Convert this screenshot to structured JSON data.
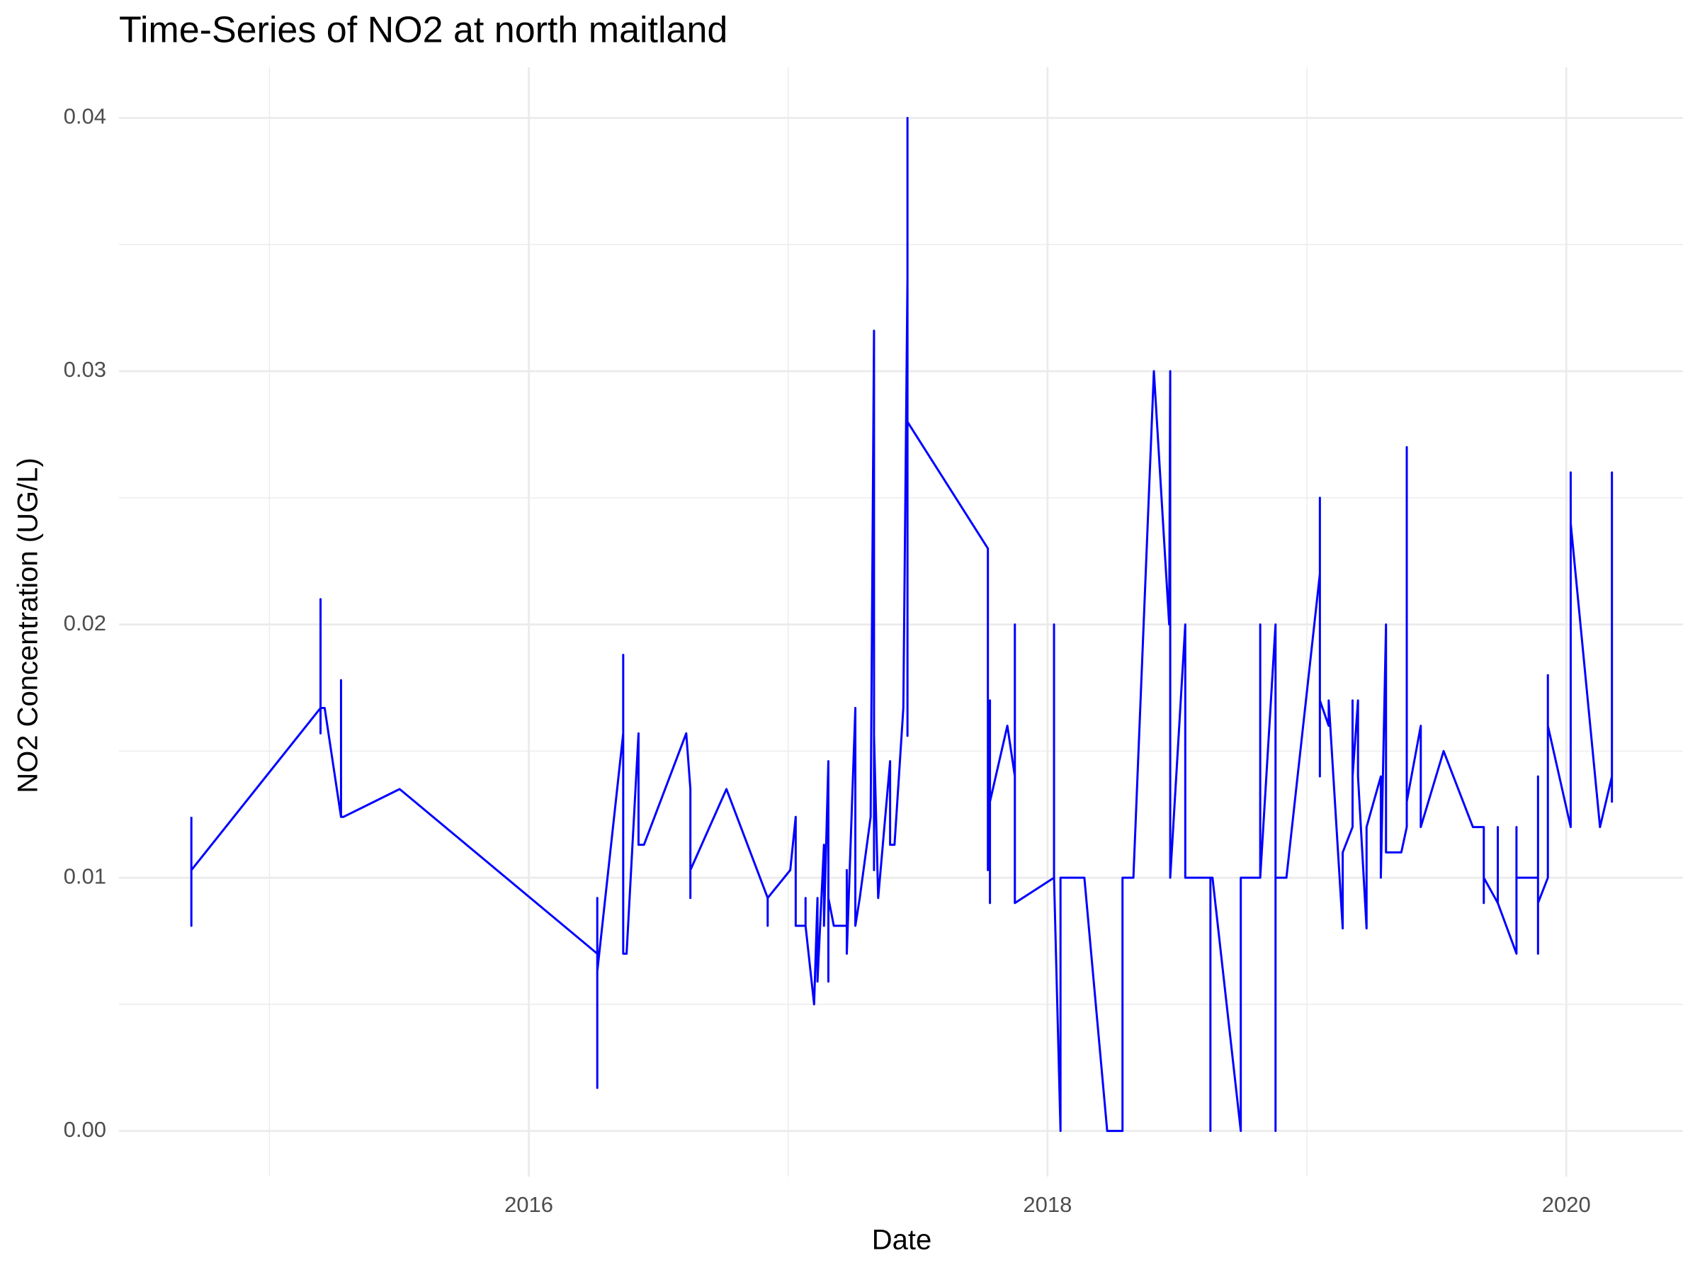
{
  "chart_data": {
    "type": "line",
    "title": "Time-Series of NO2 at north maitland",
    "x_label": "Date",
    "y_label": "NO2 Concentration (UG/L)",
    "xlim": [
      2014.42,
      2020.45
    ],
    "ylim": [
      -0.0018,
      0.042
    ],
    "xticks": [
      2016,
      2018,
      2020
    ],
    "yticks": [
      {
        "value": 0,
        "label": "0.00"
      },
      0.01,
      0.02,
      0.03,
      0.04
    ],
    "grid": true,
    "x": [
      2014.699,
      2014.699,
      2014.699,
      2015.197,
      2015.197,
      2015.197,
      2015.197,
      2015.197,
      2015.197,
      2015.197,
      2015.213,
      2015.276,
      2015.276,
      2015.276,
      2015.285,
      2015.502,
      2016.264,
      2016.264,
      2016.264,
      2016.264,
      2016.264,
      2016.364,
      2016.364,
      2016.364,
      2016.377,
      2016.423,
      2016.423,
      2016.444,
      2016.607,
      2016.623,
      2016.623,
      2016.623,
      2016.762,
      2016.921,
      2016.921,
      2016.921,
      2017.008,
      2017.029,
      2017.029,
      2017.067,
      2017.067,
      2017.067,
      2017.1,
      2017.113,
      2017.113,
      2017.138,
      2017.138,
      2017.155,
      2017.155,
      2017.155,
      2017.176,
      2017.226,
      2017.226,
      2017.226,
      2017.259,
      2017.259,
      2017.276,
      2017.318,
      2017.331,
      2017.331,
      2017.331,
      2017.347,
      2017.393,
      2017.393,
      2017.41,
      2017.444,
      2017.46,
      2017.46,
      2017.46,
      2017.46,
      2017.46,
      2017.77,
      2017.77,
      2017.778,
      2017.778,
      2017.778,
      2017.845,
      2017.874,
      2017.874,
      2017.874,
      2017.874,
      2018.025,
      2018.025,
      2018.025,
      2018.05,
      2018.05,
      2018.142,
      2018.23,
      2018.289,
      2018.289,
      2018.331,
      2018.41,
      2018.469,
      2018.473,
      2018.473,
      2018.531,
      2018.531,
      2018.628,
      2018.628,
      2018.628,
      2018.636,
      2018.745,
      2018.745,
      2018.82,
      2018.82,
      2018.82,
      2018.879,
      2018.879,
      2018.879,
      2018.921,
      2019.05,
      2019.05,
      2019.05,
      2019.05,
      2019.084,
      2019.084,
      2019.138,
      2019.138,
      2019.176,
      2019.176,
      2019.176,
      2019.197,
      2019.197,
      2019.23,
      2019.23,
      2019.285,
      2019.285,
      2019.305,
      2019.305,
      2019.364,
      2019.385,
      2019.385,
      2019.385,
      2019.439,
      2019.439,
      2019.527,
      2019.64,
      2019.682,
      2019.682,
      2019.682,
      2019.736,
      2019.736,
      2019.736,
      2019.808,
      2019.808,
      2019.808,
      2019.808,
      2019.808,
      2019.891,
      2019.891,
      2019.891,
      2019.891,
      2019.929,
      2019.929,
      2019.929,
      2020.017,
      2020.017,
      2020.017,
      2020.13,
      2020.176,
      2020.176,
      2020.176,
      2020.176
    ],
    "series": [
      {
        "name": "NO2",
        "color": "#0000ff",
        "values": [
          0.0124,
          0.0081,
          0.0103,
          0.0167,
          0.021,
          0.0157,
          0.02,
          0.017,
          0.019,
          0.0167,
          0.0167,
          0.0124,
          0.0178,
          0.0124,
          0.0124,
          0.0135,
          0.007,
          0.0092,
          0.006,
          0.0017,
          0.0063,
          0.0157,
          0.0188,
          0.007,
          0.007,
          0.0157,
          0.0113,
          0.0113,
          0.0157,
          0.0135,
          0.0092,
          0.0103,
          0.0135,
          0.0092,
          0.0081,
          0.0092,
          0.0103,
          0.0124,
          0.0081,
          0.0081,
          0.0092,
          0.0081,
          0.005,
          0.0092,
          0.0059,
          0.0113,
          0.0081,
          0.0146,
          0.0059,
          0.0092,
          0.0081,
          0.0081,
          0.0103,
          0.007,
          0.0167,
          0.0081,
          0.0092,
          0.0124,
          0.0316,
          0.0103,
          0.0156,
          0.0092,
          0.0146,
          0.0113,
          0.0113,
          0.0167,
          0.0337,
          0.0156,
          0.0267,
          0.04,
          0.028,
          0.023,
          0.0103,
          0.017,
          0.009,
          0.013,
          0.016,
          0.014,
          0.02,
          0.011,
          0.009,
          0.01,
          0.02,
          0.01,
          0,
          0.01,
          0.01,
          0,
          0,
          0.01,
          0.01,
          0.03,
          0.02,
          0.03,
          0.01,
          0.02,
          0.01,
          0.01,
          0,
          0.01,
          0.01,
          0,
          0.01,
          0.01,
          0.02,
          0.01,
          0.02,
          0,
          0.01,
          0.01,
          0.022,
          0.025,
          0.014,
          0.017,
          0.016,
          0.017,
          0.008,
          0.011,
          0.012,
          0.017,
          0.014,
          0.017,
          0.014,
          0.008,
          0.012,
          0.014,
          0.01,
          0.02,
          0.011,
          0.011,
          0.012,
          0.027,
          0.013,
          0.016,
          0.012,
          0.015,
          0.012,
          0.012,
          0.009,
          0.01,
          0.009,
          0.012,
          0.009,
          0.007,
          0.01,
          0.008,
          0.012,
          0.01,
          0.01,
          0.014,
          0.007,
          0.009,
          0.01,
          0.018,
          0.016,
          0.012,
          0.026,
          0.024,
          0.012,
          0.014,
          0.026,
          0.013,
          0.014
        ]
      }
    ]
  }
}
